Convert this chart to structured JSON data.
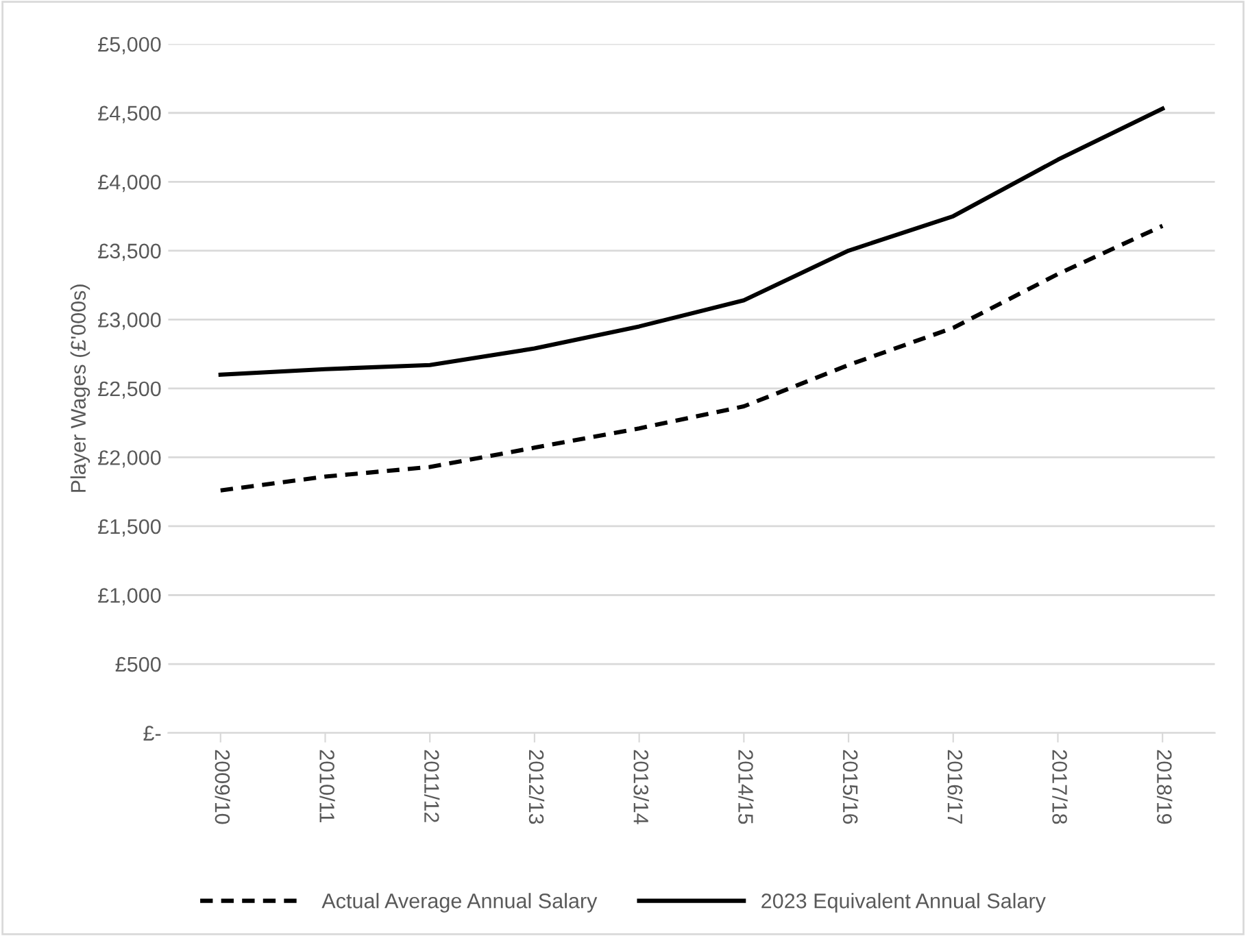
{
  "chart_data": {
    "type": "line",
    "ylabel": "Player Wages (£'000s)",
    "categories": [
      "2009/10",
      "2010/11",
      "2011/12",
      "2012/13",
      "2013/14",
      "2014/15",
      "2015/16",
      "2016/17",
      "2017/18",
      "2018/19"
    ],
    "series": [
      {
        "name": "Actual Average Annual Salary",
        "color": "#000000",
        "line_style": "dashed",
        "values": [
          1760,
          1860,
          1930,
          2070,
          2210,
          2370,
          2670,
          2940,
          3330,
          3680
        ]
      },
      {
        "name": "2023 Equivalent Annual Salary",
        "color": "#000000",
        "line_style": "solid",
        "values": [
          2600,
          2640,
          2670,
          2790,
          2950,
          3140,
          3500,
          3750,
          4160,
          4530
        ]
      }
    ],
    "ylim": [
      0,
      5000
    ],
    "yticks": [
      {
        "value": 0,
        "label": "£-"
      },
      {
        "value": 500,
        "label": "£500"
      },
      {
        "value": 1000,
        "label": "£1,000"
      },
      {
        "value": 1500,
        "label": "£1,500"
      },
      {
        "value": 2000,
        "label": "£2,000"
      },
      {
        "value": 2500,
        "label": "£2,500"
      },
      {
        "value": 3000,
        "label": "£3,000"
      },
      {
        "value": 3500,
        "label": "£3,500"
      },
      {
        "value": 4000,
        "label": "£4,000"
      },
      {
        "value": 4500,
        "label": "£4,500"
      },
      {
        "value": 5000,
        "label": "£5,000"
      }
    ],
    "grid": "y",
    "legend": "bottom",
    "marker": "none"
  }
}
